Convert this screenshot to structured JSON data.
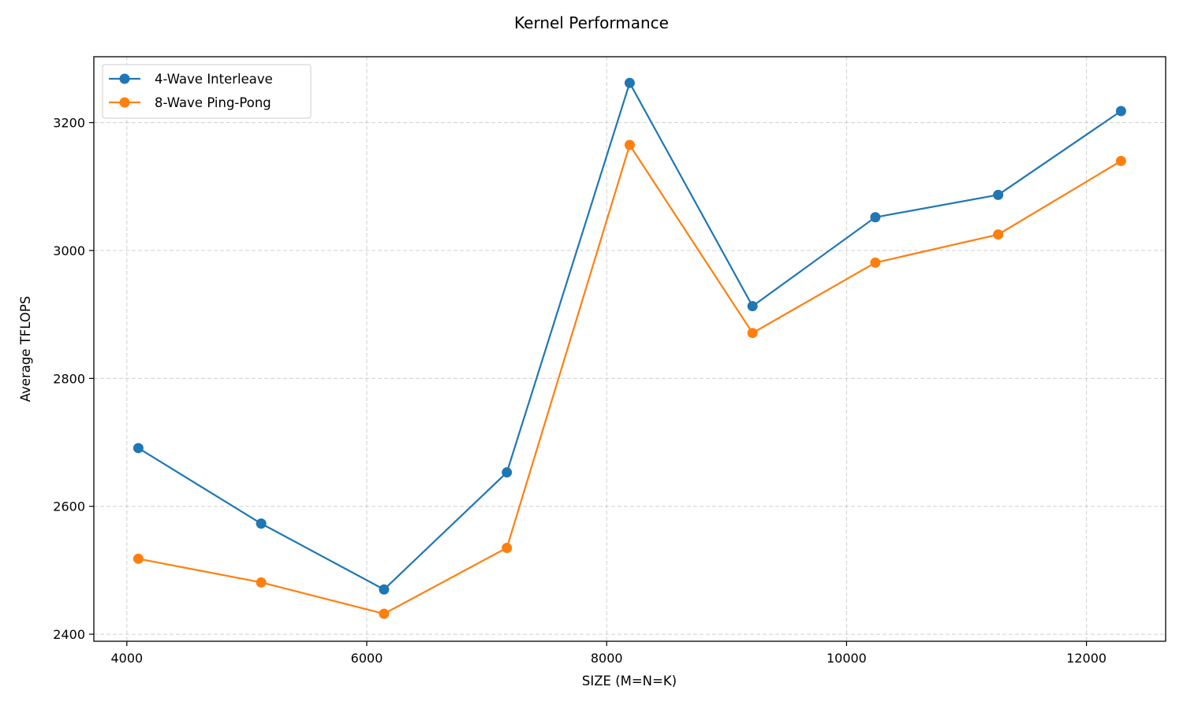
{
  "chart_data": {
    "type": "line",
    "title": "Kernel Performance",
    "xlabel": "SIZE (M=N=K)",
    "ylabel": "Average TFLOPS",
    "x": [
      4096,
      5120,
      6144,
      7168,
      8192,
      9216,
      10240,
      11264,
      12288
    ],
    "xticks": [
      4000,
      6000,
      8000,
      10000,
      12000
    ],
    "yticks": [
      2400,
      2600,
      2800,
      3000,
      3200
    ],
    "xlim": [
      3725,
      12660
    ],
    "ylim": [
      2389,
      3303
    ],
    "grid": true,
    "legend_position": "upper left",
    "series": [
      {
        "name": "4-Wave Interleave",
        "color": "#1f77b4",
        "values": [
          2691,
          2573,
          2470,
          2653,
          3262,
          2913,
          3052,
          3087,
          3218
        ]
      },
      {
        "name": "8-Wave Ping-Pong",
        "color": "#ff7f0e",
        "values": [
          2518,
          2481,
          2432,
          2535,
          3165,
          2871,
          2981,
          3025,
          3140
        ]
      }
    ]
  }
}
